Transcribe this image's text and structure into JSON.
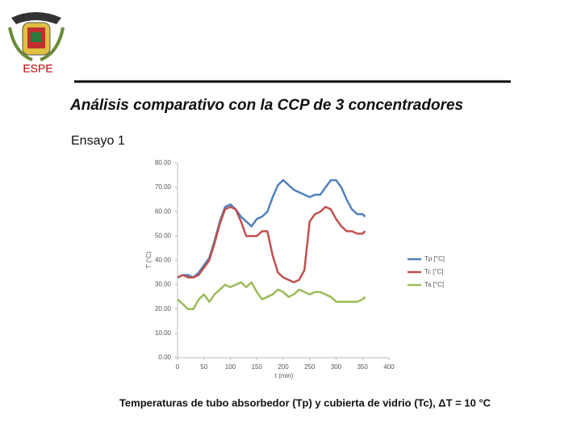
{
  "slide": {
    "logo_text": "ESPE",
    "title": "Análisis comparativo con la CCP de 3 concentradores",
    "subtitle": "Ensayo 1",
    "caption": "Temperaturas de tubo absorbedor (Tp) y cubierta de vidrio (Tc), ΔT = 10 °C"
  },
  "chart_data": {
    "type": "line",
    "xlabel": "t (min)",
    "ylabel": "T (°C)",
    "x": [
      0,
      10,
      20,
      30,
      40,
      50,
      60,
      70,
      80,
      90,
      100,
      110,
      120,
      130,
      140,
      150,
      160,
      170,
      180,
      190,
      200,
      210,
      220,
      230,
      240,
      250,
      260,
      270,
      280,
      290,
      300,
      310,
      320,
      330,
      340,
      350,
      355
    ],
    "series": [
      {
        "name": "Tp [°C]",
        "color": "#4f81bd",
        "values": [
          33,
          34,
          34,
          33,
          35,
          38,
          41,
          48,
          56,
          62,
          63,
          61,
          58,
          56,
          54,
          57,
          58,
          60,
          66,
          71,
          73,
          71,
          69,
          68,
          67,
          66,
          67,
          67,
          70,
          73,
          73,
          70,
          65,
          61,
          59,
          59,
          58
        ]
      },
      {
        "name": "Tc [°C]",
        "color": "#c0504d",
        "values": [
          33,
          34,
          33,
          33,
          34,
          37,
          40,
          47,
          55,
          61,
          62,
          61,
          56,
          50,
          50,
          50,
          52,
          52,
          42,
          35,
          33,
          32,
          31,
          32,
          36,
          56,
          59,
          60,
          62,
          61,
          57,
          54,
          52,
          52,
          51,
          51,
          52
        ]
      },
      {
        "name": "Ta [°C]",
        "color": "#9bbb59",
        "values": [
          24,
          22,
          20,
          20,
          24,
          26,
          23,
          26,
          28,
          30,
          29,
          30,
          31,
          29,
          31,
          27,
          24,
          25,
          26,
          28,
          27,
          25,
          26,
          28,
          27,
          26,
          27,
          27,
          26,
          25,
          23,
          23,
          23,
          23,
          23,
          24,
          25
        ]
      }
    ],
    "xlim": [
      0,
      400
    ],
    "xticks": [
      0,
      50,
      100,
      150,
      200,
      250,
      300,
      350,
      400
    ],
    "ylim": [
      0,
      80
    ],
    "yticks": [
      {
        "value": 0,
        "label": "0.00"
      },
      {
        "value": 10,
        "label": "10.00"
      },
      {
        "value": 20,
        "label": "20.00"
      },
      {
        "value": 30,
        "label": "30.00"
      },
      {
        "value": 40,
        "label": "40.00"
      },
      {
        "value": 50,
        "label": "50.00"
      },
      {
        "value": 60,
        "label": "60.00"
      },
      {
        "value": 70,
        "label": "70.00"
      },
      {
        "value": 80,
        "label": "80.00"
      }
    ],
    "legend": "right"
  }
}
